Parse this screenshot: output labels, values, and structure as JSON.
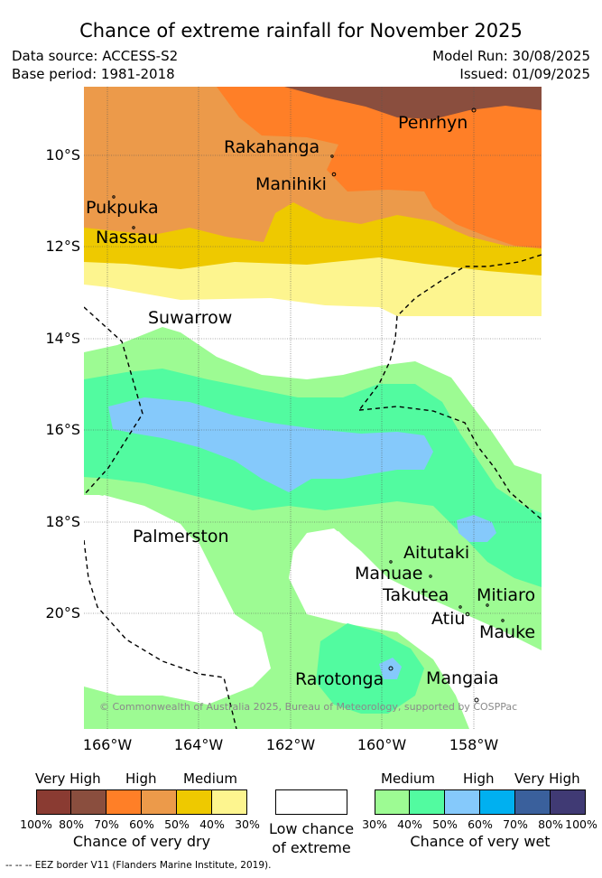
{
  "title": "Chance of extreme rainfall for November 2025",
  "meta": {
    "data_source": "Data source: ACCESS-S2",
    "base_period": "Base period: 1981-2018",
    "model_run": "Model Run: 30/08/2025",
    "issued": "Issued: 01/09/2025"
  },
  "axes": {
    "lat_labels": [
      "10°S",
      "12°S",
      "14°S",
      "16°S",
      "18°S",
      "20°S"
    ],
    "lon_labels": [
      "166°W",
      "164°W",
      "162°W",
      "160°W",
      "158°W"
    ]
  },
  "places": {
    "penrhyn": "Penrhyn",
    "rakahanga": "Rakahanga",
    "manihiki": "Manihiki",
    "pukpuka": "Pukpuka",
    "nassau": "Nassau",
    "suwarrow": "Suwarrow",
    "palmerston": "Palmerston",
    "aitutaki": "Aitutaki",
    "manuae": "Manuae",
    "takutea": "Takutea",
    "mitiaro": "Mitiaro",
    "atiu": "Atiu",
    "mauke": "Mauke",
    "rarotonga": "Rarotonga",
    "mangaia": "Mangaia"
  },
  "copyright": "© Commonwealth of Australia 2025, Bureau of Meteorology, supported by COSPPac",
  "legend": {
    "dry": {
      "headers": [
        "Very High",
        "High",
        "Medium"
      ],
      "ticks": [
        "100%",
        "80%",
        "70%",
        "60%",
        "50%",
        "40%",
        "30%"
      ],
      "caption": "Chance of very dry",
      "colors": [
        "#8a3b32",
        "#8a4e3e",
        "#ff7f27",
        "#ec9a4a",
        "#eec900",
        "#fdf58f"
      ]
    },
    "neutral": {
      "caption_line1": "Low chance",
      "caption_line2": "of extreme",
      "color": "#ffffff"
    },
    "wet": {
      "headers": [
        "Medium",
        "High",
        "Very High"
      ],
      "ticks": [
        "30%",
        "40%",
        "50%",
        "60%",
        "70%",
        "80%",
        "100%"
      ],
      "caption": "Chance of very wet",
      "colors": [
        "#9dfb93",
        "#52fba0",
        "#85c9fb",
        "#00b0f0",
        "#3a609c",
        "#403a74"
      ]
    }
  },
  "eez_note": "--  --  -- EEZ border V11 (Flanders Marine Institute, 2019)."
}
